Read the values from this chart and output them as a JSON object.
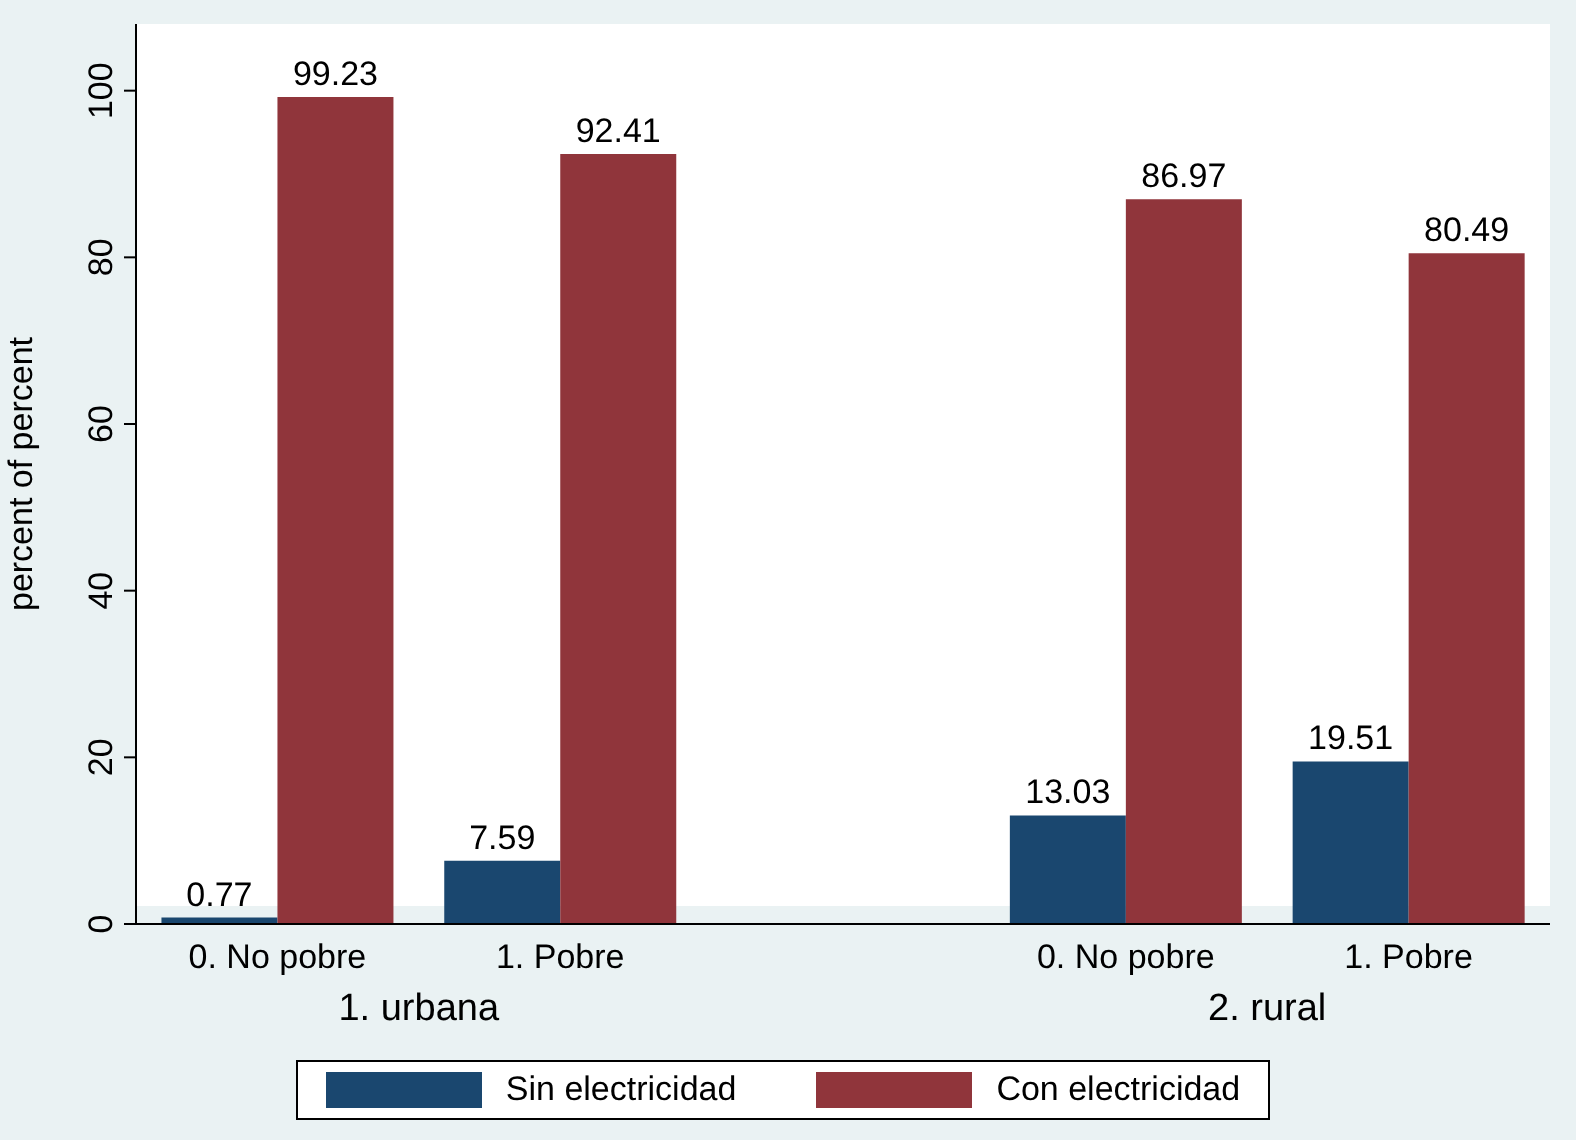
{
  "chart_data": {
    "type": "bar",
    "ylabel": "percent of percent",
    "categories": [
      "0. No pobre",
      "1. Pobre",
      null,
      "0. No pobre",
      "1. Pobre"
    ],
    "series": [
      {
        "name": "Sin electricidad",
        "color": "#1a476f",
        "values": [
          0.77,
          7.59,
          null,
          13.03,
          19.51
        ]
      },
      {
        "name": "Con electricidad",
        "color": "#90353b",
        "values": [
          99.23,
          92.41,
          null,
          86.97,
          80.49
        ]
      }
    ],
    "annotations": [
      "1. urbana",
      "2. rural"
    ],
    "ylim": [
      0,
      108
    ],
    "yticks": [
      0,
      20,
      40,
      60,
      80,
      100
    ],
    "grid": false,
    "legend": "bottom",
    "data_labels": true
  }
}
